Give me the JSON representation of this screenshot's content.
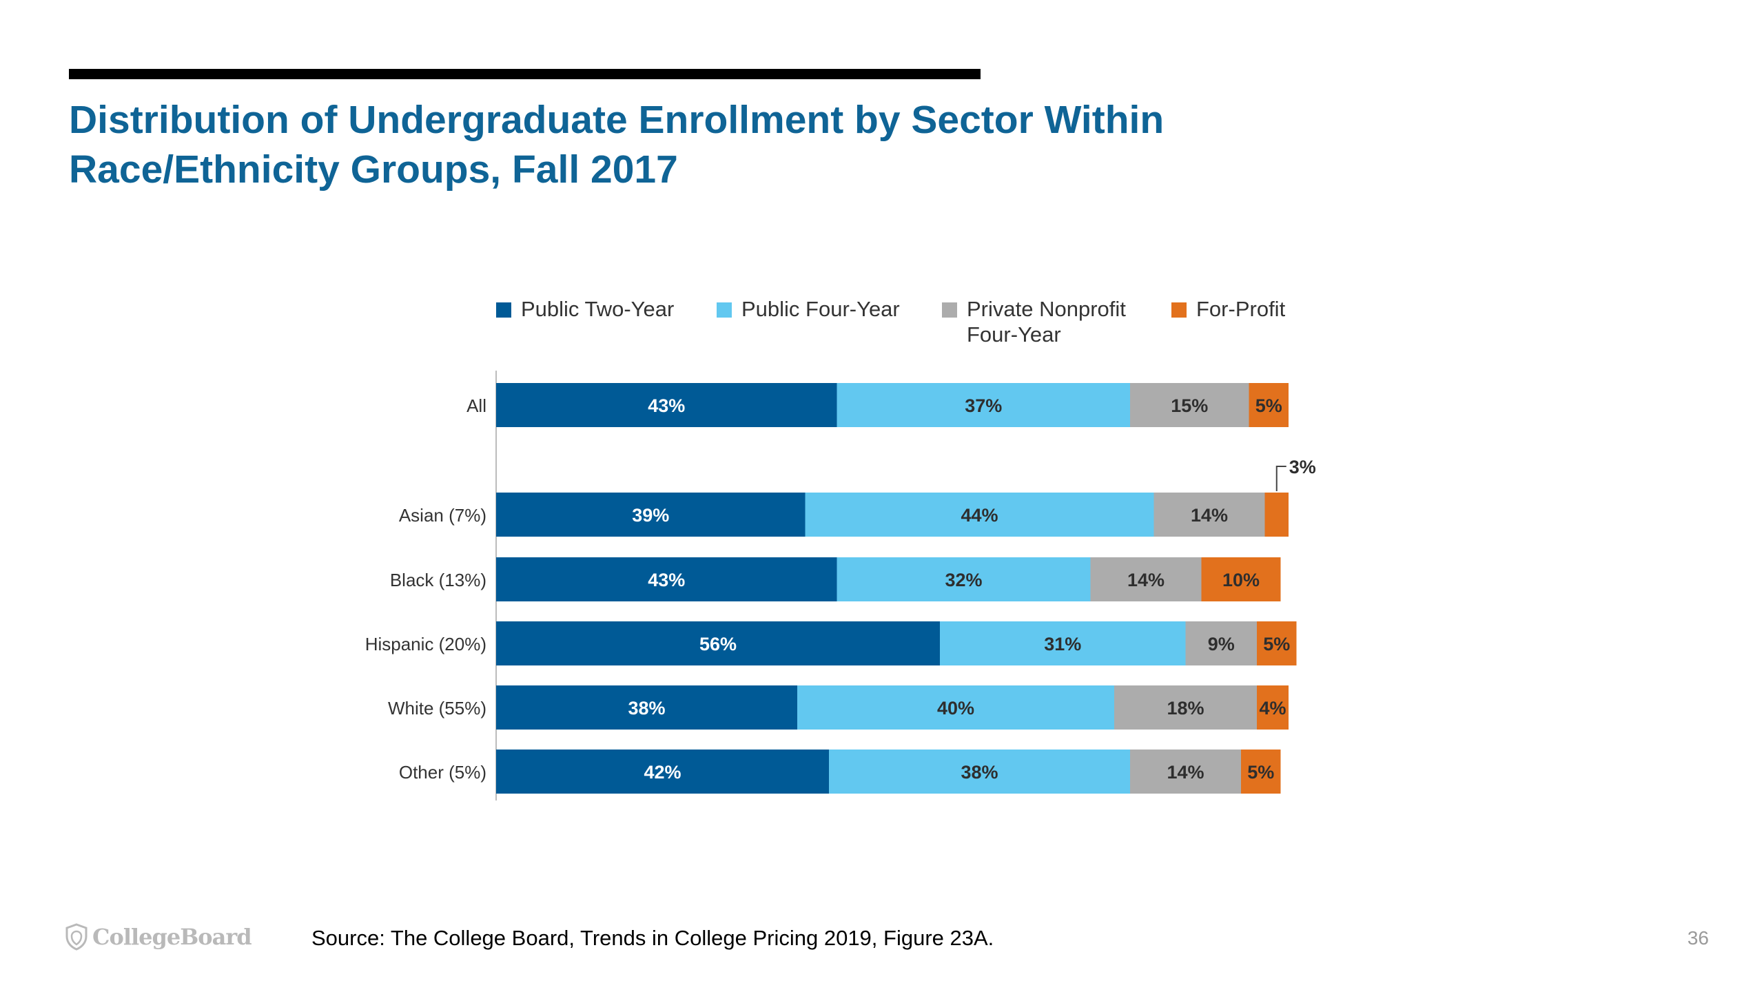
{
  "slide": {
    "title_lines": [
      "Distribution of Undergraduate Enrollment by Sector Within",
      "Race/Ethnicity Groups, Fall 2017"
    ],
    "title_color": "#0f6496",
    "source": "Source: The College Board, Trends in College Pricing 2019, Figure 23A.",
    "page_number": "36",
    "logo_text": "CollegeBoard"
  },
  "chart_data": {
    "type": "bar",
    "orientation": "horizontal",
    "stacked": true,
    "xlim": [
      0,
      100
    ],
    "categories": [
      "All",
      "Asian (7%)",
      "Black (13%)",
      "Hispanic (20%)",
      "White (55%)",
      "Other (5%)"
    ],
    "series": [
      {
        "name": "Public Two-Year",
        "color": "#005a96",
        "values": [
          43,
          39,
          43,
          56,
          38,
          42
        ]
      },
      {
        "name": "Public Four-Year",
        "color": "#62c8f0",
        "values": [
          37,
          44,
          32,
          31,
          40,
          38
        ]
      },
      {
        "name": "Private Nonprofit Four-Year",
        "color": "#acacac",
        "values": [
          15,
          14,
          14,
          9,
          18,
          14
        ]
      },
      {
        "name": "For-Profit",
        "color": "#e2711d",
        "values": [
          5,
          3,
          10,
          5,
          4,
          5
        ]
      }
    ],
    "data_labels": [
      [
        "43%",
        "37%",
        "15%",
        "5%"
      ],
      [
        "39%",
        "44%",
        "14%",
        "3%"
      ],
      [
        "43%",
        "32%",
        "14%",
        "10%"
      ],
      [
        "56%",
        "31%",
        "9%",
        "5%"
      ],
      [
        "38%",
        "40%",
        "18%",
        "4%"
      ],
      [
        "42%",
        "38%",
        "14%",
        "5%"
      ]
    ],
    "legend": {
      "position": "top",
      "labels": [
        "Public Two-Year",
        "Public Four-Year",
        "Private Nonprofit\nFour-Year",
        "For-Profit"
      ]
    },
    "callout": {
      "category": "Asian (7%)",
      "series": "For-Profit",
      "text": "3%"
    },
    "grid": false
  }
}
